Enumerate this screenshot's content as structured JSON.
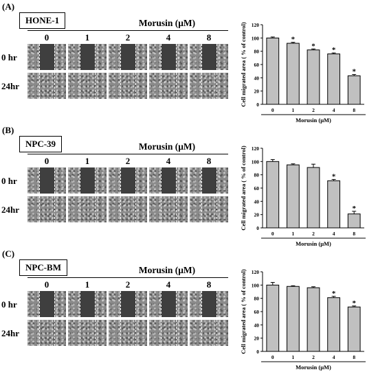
{
  "drug_title": "Morusin (μM)",
  "doses": [
    "0",
    "1",
    "2",
    "4",
    "8"
  ],
  "times": [
    "0 hr",
    "24hr"
  ],
  "panels": [
    {
      "letter": "(A)",
      "cell_line": "HONE-1"
    },
    {
      "letter": "(B)",
      "cell_line": "NPC-39"
    },
    {
      "letter": "(C)",
      "cell_line": "NPC-BM"
    }
  ],
  "chart_data": [
    {
      "type": "bar",
      "categories": [
        "0",
        "1",
        "2",
        "4",
        "8"
      ],
      "values": [
        100,
        92,
        82,
        76,
        43
      ],
      "errors": [
        1.5,
        1.5,
        1.5,
        1.5,
        2
      ],
      "significant": [
        false,
        true,
        true,
        true,
        true
      ],
      "marker": "*",
      "xlabel": "Morusin (μM)",
      "ylabel": "Cell migrated area ( % of control)",
      "ylim": [
        0,
        120
      ],
      "yticks": [
        0,
        20,
        40,
        60,
        80,
        100,
        120
      ],
      "bar_color": "#c0c0c0"
    },
    {
      "type": "bar",
      "categories": [
        "0",
        "1",
        "2",
        "4",
        "8"
      ],
      "values": [
        100,
        95,
        91,
        71,
        21
      ],
      "errors": [
        3,
        1.5,
        5,
        2,
        4
      ],
      "significant": [
        false,
        false,
        false,
        true,
        true
      ],
      "marker": "*",
      "xlabel": "Morusin (μM)",
      "ylabel": "Cell migrated area ( % of control)",
      "ylim": [
        0,
        120
      ],
      "yticks": [
        0,
        20,
        40,
        60,
        80,
        100,
        120
      ],
      "bar_color": "#c0c0c0"
    },
    {
      "type": "bar",
      "categories": [
        "0",
        "1",
        "2",
        "4",
        "8"
      ],
      "values": [
        100,
        98,
        96,
        81,
        67
      ],
      "errors": [
        4,
        1,
        1.5,
        2,
        1.5
      ],
      "significant": [
        false,
        false,
        false,
        true,
        true
      ],
      "marker": "*",
      "xlabel": "Morusin (μM)",
      "ylabel": "Cell migrated area ( % of control)",
      "ylim": [
        0,
        120
      ],
      "yticks": [
        0,
        20,
        40,
        60,
        80,
        100,
        120
      ],
      "bar_color": "#c0c0c0"
    }
  ]
}
